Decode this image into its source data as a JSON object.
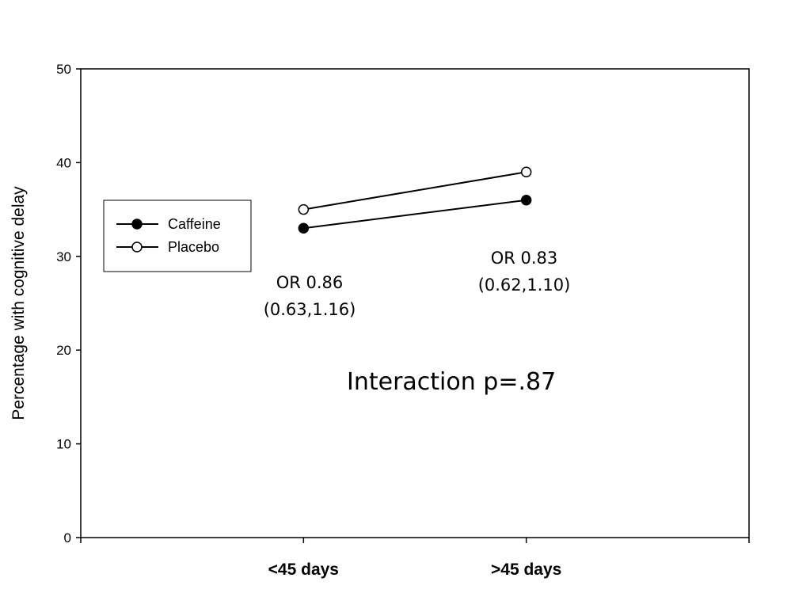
{
  "chart_data": {
    "type": "line",
    "title": "",
    "xlabel": "",
    "ylabel": "Percentage with cognitive delay",
    "categories": [
      "<45 days",
      ">45 days"
    ],
    "ylim": [
      0,
      50
    ],
    "yticks": [
      0,
      10,
      20,
      30,
      40,
      50
    ],
    "grid": false,
    "legend_placement": "left",
    "series": [
      {
        "name": "Caffeine",
        "marker": "filled-circle",
        "values": [
          33,
          36
        ]
      },
      {
        "name": "Placebo",
        "marker": "open-circle",
        "values": [
          35,
          39
        ]
      }
    ],
    "annotations": [
      {
        "lines": [
          "OR 0.86",
          "(0.63,1.16)"
        ]
      },
      {
        "lines": [
          "OR 0.83",
          "(0.62,1.10)"
        ]
      },
      {
        "lines": [
          "Interaction p=.87"
        ]
      }
    ]
  }
}
